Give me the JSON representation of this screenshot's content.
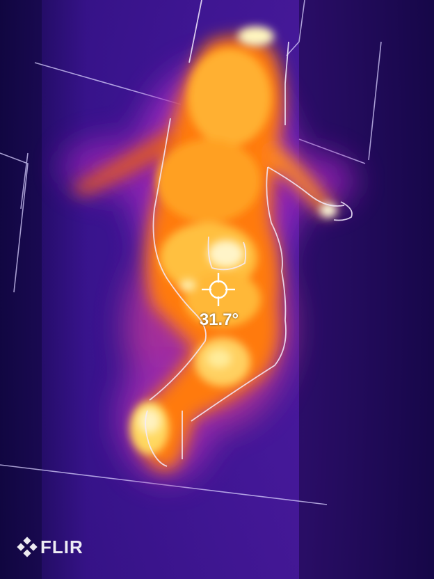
{
  "thermal": {
    "temperature_readout": "31.7°",
    "spot_marker_icon": "crosshair-icon"
  },
  "branding": {
    "logo_text": "FLIR",
    "logo_icon": "flir-diamond-icon"
  },
  "colors": {
    "palette_cold": "#1c0a55",
    "palette_mid": "#8a20c0",
    "palette_warm": "#ff8a00",
    "palette_hot": "#ffe070",
    "palette_hottest": "#ffffff"
  }
}
